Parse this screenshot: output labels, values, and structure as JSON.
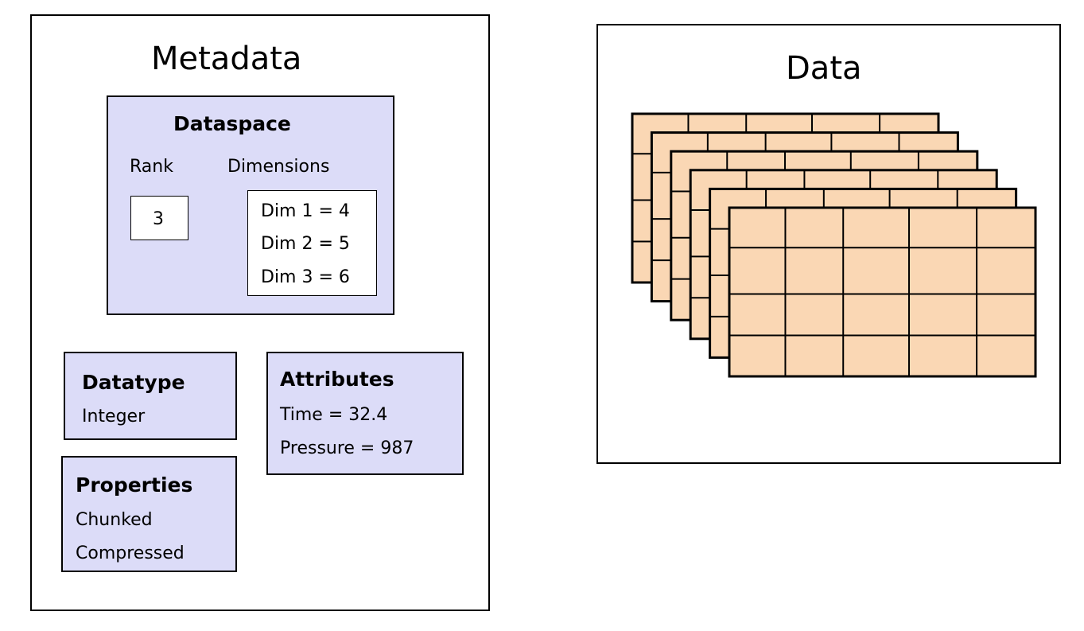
{
  "metadata": {
    "title": "Metadata",
    "dataspace": {
      "title": "Dataspace",
      "rank_label": "Rank",
      "dimensions_label": "Dimensions",
      "rank_value": "3",
      "dims": [
        "Dim 1 = 4",
        "Dim 2 = 5",
        "Dim 3 = 6"
      ]
    },
    "datatype": {
      "title": "Datatype",
      "value": "Integer"
    },
    "attributes": {
      "title": "Attributes",
      "items": [
        "Time = 32.4",
        "Pressure = 987"
      ]
    },
    "properties": {
      "title": "Properties",
      "items": [
        "Chunked",
        "Compressed"
      ]
    }
  },
  "data": {
    "title": "Data",
    "layers": 6,
    "grid_rows": 4,
    "grid_cols": 5,
    "cell_fill": "#fad7b4",
    "box_fill": "#dcdcf8"
  }
}
